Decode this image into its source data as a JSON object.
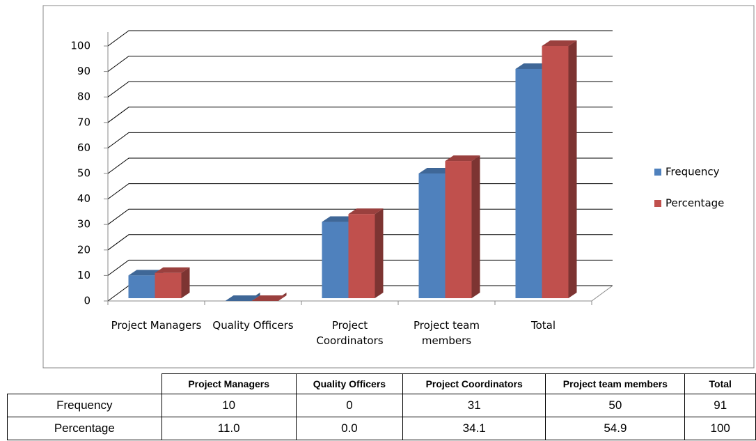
{
  "chart_data": {
    "type": "bar",
    "categories": [
      "Project Managers",
      "Quality Officers",
      "Project Coordinators",
      "Project team members",
      "Total"
    ],
    "series": [
      {
        "name": "Frequency",
        "color": "#4f81bd",
        "values": [
          10,
          0,
          31,
          50,
          91
        ]
      },
      {
        "name": "Percentage",
        "color": "#c0504d",
        "values": [
          11.0,
          0.0,
          34.1,
          54.9,
          100
        ],
        "value_labels": [
          "11.0",
          "0.0",
          "34.1",
          "54.9",
          "100"
        ]
      }
    ],
    "ylim": [
      0,
      100
    ],
    "yticks": [
      0,
      10,
      20,
      30,
      40,
      50,
      60,
      70,
      80,
      90,
      100
    ],
    "grid": true,
    "legend": "right",
    "data_table": true
  }
}
